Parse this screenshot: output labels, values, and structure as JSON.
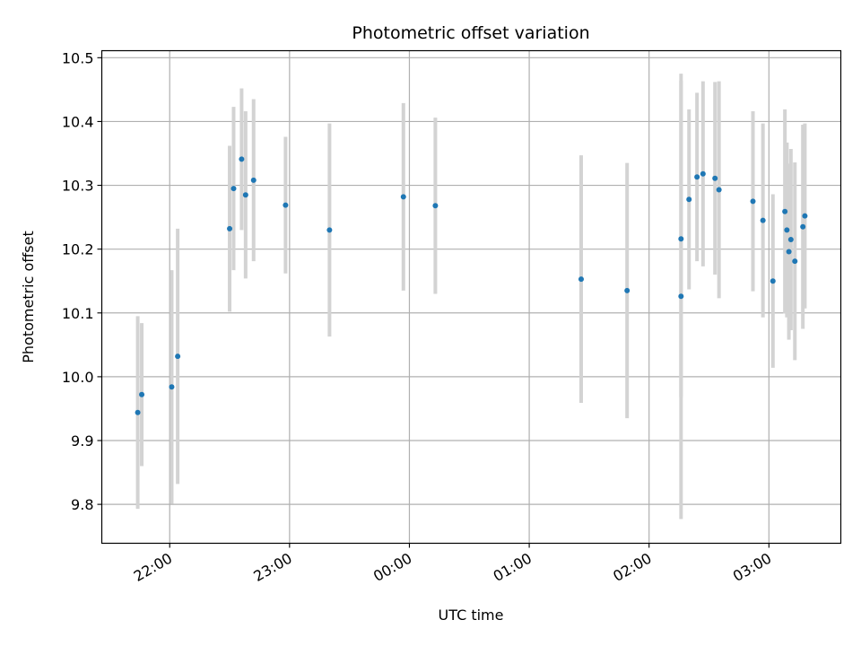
{
  "chart_data": {
    "type": "scatter",
    "title": "Photometric offset variation",
    "xlabel": "UTC time",
    "ylabel": "Photometric offset",
    "x_ticks": [
      "22:00",
      "23:00",
      "00:00",
      "01:00",
      "02:00",
      "03:00"
    ],
    "y_ticks": [
      "9.8",
      "9.9",
      "10.0",
      "10.1",
      "10.2",
      "10.3",
      "10.4",
      "10.5"
    ],
    "x_tick_values": [
      "22:00",
      "23:00",
      "00:00",
      "01:00",
      "02:00",
      "03:00"
    ],
    "y_tick_values": [
      9.8,
      9.9,
      10.0,
      10.1,
      10.2,
      10.3,
      10.4,
      10.5
    ],
    "xlim": [
      "21:26",
      "03:36"
    ],
    "ylim": [
      9.739,
      10.511
    ],
    "grid": true,
    "marker_color": "#1f77b4",
    "errorbar_color": "#d3d3d3",
    "points": [
      {
        "x": "21:44",
        "y": 9.944,
        "err": 0.151
      },
      {
        "x": "21:46",
        "y": 9.972,
        "err": 0.112
      },
      {
        "x": "22:01",
        "y": 9.984,
        "err": 0.183
      },
      {
        "x": "22:04",
        "y": 10.032,
        "err": 0.2
      },
      {
        "x": "22:30",
        "y": 10.232,
        "err": 0.13
      },
      {
        "x": "22:32",
        "y": 10.295,
        "err": 0.128
      },
      {
        "x": "22:36",
        "y": 10.341,
        "err": 0.111
      },
      {
        "x": "22:38",
        "y": 10.285,
        "err": 0.131
      },
      {
        "x": "22:42",
        "y": 10.308,
        "err": 0.127
      },
      {
        "x": "22:58",
        "y": 10.269,
        "err": 0.107
      },
      {
        "x": "23:20",
        "y": 10.23,
        "err": 0.167
      },
      {
        "x": "23:57",
        "y": 10.282,
        "err": 0.147
      },
      {
        "x": "00:13",
        "y": 10.268,
        "err": 0.138
      },
      {
        "x": "01:26",
        "y": 10.153,
        "err": 0.194
      },
      {
        "x": "01:49",
        "y": 10.135,
        "err": 0.2
      },
      {
        "x": "02:16",
        "y": 10.126,
        "err": 0.349
      },
      {
        "x": "02:16",
        "y": 10.216,
        "err": 0.248
      },
      {
        "x": "02:20",
        "y": 10.278,
        "err": 0.141
      },
      {
        "x": "02:24",
        "y": 10.313,
        "err": 0.132
      },
      {
        "x": "02:27",
        "y": 10.318,
        "err": 0.145
      },
      {
        "x": "02:33",
        "y": 10.311,
        "err": 0.151
      },
      {
        "x": "02:35",
        "y": 10.293,
        "err": 0.17
      },
      {
        "x": "02:52",
        "y": 10.275,
        "err": 0.141
      },
      {
        "x": "02:57",
        "y": 10.245,
        "err": 0.152
      },
      {
        "x": "03:02",
        "y": 10.15,
        "err": 0.136
      },
      {
        "x": "03:08",
        "y": 10.259,
        "err": 0.16
      },
      {
        "x": "03:09",
        "y": 10.23,
        "err": 0.137
      },
      {
        "x": "03:10",
        "y": 10.196,
        "err": 0.138
      },
      {
        "x": "03:11",
        "y": 10.215,
        "err": 0.142
      },
      {
        "x": "03:13",
        "y": 10.181,
        "err": 0.155
      },
      {
        "x": "03:17",
        "y": 10.235,
        "err": 0.16
      },
      {
        "x": "03:18",
        "y": 10.252,
        "err": 0.145
      }
    ]
  }
}
